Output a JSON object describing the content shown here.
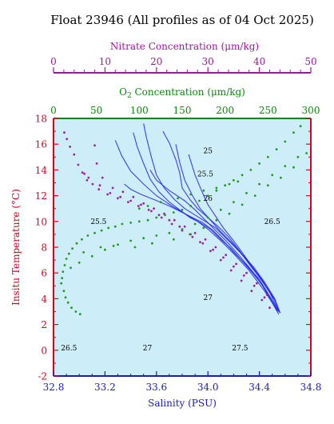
{
  "title": "Float 23946  (All profiles as of 04 Oct 2025)",
  "colors": {
    "temperature_axis": "#e0001b",
    "salinity_axis": "#1a1ad0",
    "oxygen_axis": "#0a8a0a",
    "nitrate_axis": "#9a1a9a",
    "plot_background": "#cdeef9",
    "density_contour": "#5a6fd6",
    "profile_line": "#2222ee",
    "oxygen_points": "#1f9a1f",
    "nitrate_points": "#a0209e"
  },
  "chart_data": {
    "type": "scatter",
    "title": "Float 23946  (All profiles as of 04 Oct 2025)",
    "axes": {
      "x_bottom": {
        "label": "Salinity (PSU)",
        "range": [
          32.8,
          34.8
        ],
        "ticks": [
          "32.8",
          "33.2",
          "33.6",
          "34.0",
          "34.4",
          "34.8"
        ]
      },
      "y_left": {
        "label": "Insitu Temperature (°C)",
        "range": [
          -2,
          18
        ],
        "ticks": [
          "-2",
          "0",
          "2",
          "4",
          "6",
          "8",
          "10",
          "12",
          "14",
          "16",
          "18"
        ]
      },
      "x_top_oxygen": {
        "label_parts": [
          "O",
          "2",
          " Concentration (μm/kg)"
        ],
        "range": [
          0,
          300
        ],
        "ticks": [
          "0",
          "50",
          "100",
          "150",
          "200",
          "250",
          "300"
        ]
      },
      "x_top_nitrate": {
        "label": "Nitrate Concentration (μm/kg)",
        "range": [
          0,
          50
        ],
        "ticks": [
          "0",
          "10",
          "20",
          "30",
          "40",
          "50"
        ]
      }
    },
    "density_contours": [
      {
        "label": "25",
        "sigma": 25.0,
        "label_at": [
          34.0,
          15.3
        ]
      },
      {
        "label": "25.5",
        "sigma": 25.5,
        "label_at": [
          33.98,
          13.5
        ]
      },
      {
        "label": "26",
        "sigma": 26.0,
        "label_at": [
          34.0,
          11.6
        ]
      },
      {
        "label": "26.5",
        "sigma": 26.5,
        "label_at": [
          34.5,
          9.8
        ]
      },
      {
        "label": "27",
        "sigma": 27.0,
        "label_at": [
          34.0,
          3.9
        ]
      },
      {
        "label": "27.5",
        "sigma": 27.5,
        "label_at": [
          34.25,
          0.0
        ]
      }
    ],
    "extra_contour_labels": [
      {
        "label": "25.5",
        "at": [
          33.15,
          9.8
        ]
      },
      {
        "label": "26.5",
        "at": [
          32.92,
          0.0
        ]
      },
      {
        "label": "27",
        "at": [
          33.53,
          0.0
        ]
      }
    ],
    "ts_profiles": [
      {
        "salinity": [
          33.42,
          33.45,
          33.5,
          33.55,
          33.62,
          33.7,
          33.78,
          33.86,
          33.94,
          34.02,
          34.1,
          34.18,
          34.26,
          34.34,
          34.42,
          34.5,
          34.55
        ],
        "temperature": [
          16.9,
          15.8,
          14.5,
          13.3,
          12.3,
          11.5,
          10.9,
          10.3,
          9.9,
          9.4,
          8.6,
          7.9,
          7.0,
          6.1,
          5.1,
          3.7,
          2.8
        ]
      },
      {
        "salinity": [
          33.5,
          33.52,
          33.56,
          33.6,
          33.66,
          33.74,
          33.82,
          33.9,
          33.98,
          34.06,
          34.12,
          34.2,
          34.28,
          34.36,
          34.44,
          34.52,
          34.56
        ],
        "temperature": [
          17.6,
          16.6,
          15.0,
          13.6,
          12.6,
          11.7,
          11.0,
          10.5,
          10.0,
          9.5,
          8.9,
          8.1,
          7.3,
          6.4,
          5.3,
          4.0,
          2.9
        ]
      },
      {
        "salinity": [
          33.28,
          33.33,
          33.4,
          33.5,
          33.6,
          33.72,
          33.84,
          33.96,
          34.04,
          34.12,
          34.2,
          34.3,
          34.4,
          34.48,
          34.55
        ],
        "temperature": [
          16.3,
          15.1,
          13.9,
          12.9,
          12.0,
          11.2,
          10.5,
          9.9,
          9.3,
          8.5,
          7.6,
          6.6,
          5.5,
          4.2,
          3.0
        ]
      },
      {
        "salinity": [
          33.65,
          33.7,
          33.75,
          33.78,
          33.8,
          33.86,
          33.92,
          34.0,
          34.08,
          34.16,
          34.24,
          34.32,
          34.42,
          34.52,
          34.56
        ],
        "temperature": [
          17.0,
          16.1,
          14.8,
          13.8,
          12.6,
          11.7,
          11.0,
          10.3,
          9.6,
          8.8,
          7.8,
          6.7,
          5.4,
          3.9,
          2.9
        ]
      },
      {
        "salinity": [
          33.55,
          33.6,
          33.7,
          33.82,
          33.9,
          33.96,
          34.04,
          34.14,
          34.24,
          34.34,
          34.44,
          34.54
        ],
        "temperature": [
          14.0,
          13.2,
          12.4,
          11.6,
          10.9,
          10.3,
          9.5,
          8.5,
          7.4,
          6.2,
          4.8,
          3.0
        ]
      },
      {
        "salinity": [
          33.35,
          33.4,
          33.48,
          33.58,
          33.7,
          33.82,
          33.92,
          34.0,
          34.1,
          34.2,
          34.32,
          34.44,
          34.54
        ],
        "temperature": [
          12.9,
          12.5,
          12.1,
          11.7,
          11.2,
          10.6,
          10.0,
          9.4,
          8.5,
          7.5,
          6.2,
          4.6,
          3.1
        ]
      },
      {
        "salinity": [
          33.75,
          33.78,
          33.82,
          33.88,
          33.94,
          34.02,
          34.1,
          34.2,
          34.3,
          34.42,
          34.52,
          34.56
        ],
        "temperature": [
          16.0,
          14.6,
          13.2,
          12.0,
          11.0,
          10.1,
          9.2,
          8.2,
          7.0,
          5.5,
          3.9,
          2.9
        ]
      },
      {
        "salinity": [
          33.85,
          33.9,
          33.95,
          34.0,
          34.06,
          34.12,
          34.2,
          34.28,
          34.38,
          34.48,
          34.55
        ],
        "temperature": [
          15.2,
          13.6,
          12.4,
          11.3,
          10.4,
          9.5,
          8.5,
          7.4,
          6.0,
          4.5,
          3.0
        ]
      }
    ],
    "oxygen_points": [
      [
        9,
        5.2
      ],
      [
        10,
        5.6
      ],
      [
        11,
        6.1
      ],
      [
        13,
        6.6
      ],
      [
        15,
        7.1
      ],
      [
        18,
        7.5
      ],
      [
        22,
        7.9
      ],
      [
        27,
        8.3
      ],
      [
        33,
        8.6
      ],
      [
        40,
        8.9
      ],
      [
        48,
        9.1
      ],
      [
        56,
        9.3
      ],
      [
        64,
        9.5
      ],
      [
        72,
        9.6
      ],
      [
        80,
        9.8
      ],
      [
        90,
        9.9
      ],
      [
        100,
        10.0
      ],
      [
        110,
        10.1
      ],
      [
        120,
        10.3
      ],
      [
        130,
        10.5
      ],
      [
        140,
        10.7
      ],
      [
        150,
        10.9
      ],
      [
        160,
        11.2
      ],
      [
        170,
        11.6
      ],
      [
        180,
        12.0
      ],
      [
        190,
        12.4
      ],
      [
        200,
        12.8
      ],
      [
        210,
        13.2
      ],
      [
        220,
        13.6
      ],
      [
        230,
        14.0
      ],
      [
        240,
        14.5
      ],
      [
        250,
        15.0
      ],
      [
        260,
        15.6
      ],
      [
        270,
        16.2
      ],
      [
        280,
        16.9
      ],
      [
        288,
        17.4
      ],
      [
        12,
        4.6
      ],
      [
        14,
        4.1
      ],
      [
        17,
        3.7
      ],
      [
        21,
        3.3
      ],
      [
        26,
        3.0
      ],
      [
        31,
        2.8
      ],
      [
        20,
        6.4
      ],
      [
        30,
        6.8
      ],
      [
        45,
        7.3
      ],
      [
        60,
        7.8
      ],
      [
        75,
        8.2
      ],
      [
        90,
        8.5
      ],
      [
        105,
        8.7
      ],
      [
        120,
        8.9
      ],
      [
        135,
        9.1
      ],
      [
        150,
        9.4
      ],
      [
        165,
        9.8
      ],
      [
        180,
        10.3
      ],
      [
        195,
        10.9
      ],
      [
        210,
        11.5
      ],
      [
        225,
        12.2
      ],
      [
        240,
        12.9
      ],
      [
        255,
        13.6
      ],
      [
        270,
        14.3
      ],
      [
        285,
        15.0
      ],
      [
        35,
        7.6
      ],
      [
        55,
        8.0
      ],
      [
        70,
        8.1
      ],
      [
        95,
        8.0
      ],
      [
        115,
        8.3
      ],
      [
        140,
        8.6
      ],
      [
        160,
        9.0
      ],
      [
        175,
        9.5
      ],
      [
        190,
        10.1
      ],
      [
        205,
        10.6
      ],
      [
        220,
        11.3
      ],
      [
        235,
        12.0
      ],
      [
        250,
        12.8
      ],
      [
        265,
        13.4
      ],
      [
        280,
        14.2
      ],
      [
        295,
        15.3
      ],
      [
        100,
        11.0
      ],
      [
        110,
        11.2
      ],
      [
        125,
        11.5
      ],
      [
        145,
        11.8
      ],
      [
        160,
        12.1
      ],
      [
        175,
        12.4
      ],
      [
        190,
        12.6
      ],
      [
        205,
        12.9
      ],
      [
        215,
        13.1
      ]
    ],
    "nitrate_points": [
      [
        2.1,
        16.9
      ],
      [
        2.6,
        16.4
      ],
      [
        3.2,
        15.8
      ],
      [
        4.0,
        15.2
      ],
      [
        4.8,
        14.4
      ],
      [
        5.6,
        13.8
      ],
      [
        6.5,
        13.2
      ],
      [
        7.6,
        12.9
      ],
      [
        8.8,
        12.5
      ],
      [
        10.5,
        12.1
      ],
      [
        12.5,
        11.8
      ],
      [
        14.5,
        11.5
      ],
      [
        16.5,
        11.2
      ],
      [
        18.5,
        10.9
      ],
      [
        20.5,
        10.5
      ],
      [
        22.5,
        10.1
      ],
      [
        24.5,
        9.6
      ],
      [
        26.5,
        9.0
      ],
      [
        28.5,
        8.4
      ],
      [
        30.5,
        7.7
      ],
      [
        32.5,
        7.0
      ],
      [
        34.5,
        6.2
      ],
      [
        36.5,
        5.4
      ],
      [
        38.5,
        4.6
      ],
      [
        40.5,
        3.9
      ],
      [
        42.0,
        3.3
      ],
      [
        8.0,
        15.9
      ],
      [
        8.4,
        14.5
      ],
      [
        9.5,
        13.4
      ],
      [
        11.5,
        12.6
      ],
      [
        13.5,
        12.3
      ],
      [
        15.5,
        11.9
      ],
      [
        17.5,
        11.4
      ],
      [
        19.5,
        11.0
      ],
      [
        21.5,
        10.6
      ],
      [
        23.5,
        10.1
      ],
      [
        25.5,
        9.6
      ],
      [
        27.5,
        9.1
      ],
      [
        29.5,
        8.6
      ],
      [
        31.5,
        8.0
      ],
      [
        33.5,
        7.4
      ],
      [
        35.5,
        6.7
      ],
      [
        37.5,
        6.0
      ],
      [
        39.5,
        5.2
      ],
      [
        41.5,
        4.3
      ],
      [
        6.0,
        13.7
      ],
      [
        6.8,
        13.4
      ],
      [
        9.0,
        12.8
      ],
      [
        11.0,
        12.2
      ],
      [
        13.0,
        11.9
      ],
      [
        15.0,
        11.6
      ],
      [
        17.0,
        11.3
      ],
      [
        19.0,
        10.8
      ],
      [
        21.0,
        10.3
      ],
      [
        23.0,
        9.8
      ],
      [
        25.0,
        9.3
      ],
      [
        27.0,
        8.8
      ],
      [
        29.0,
        8.3
      ],
      [
        31.0,
        7.8
      ],
      [
        33.0,
        7.2
      ],
      [
        35.0,
        6.5
      ],
      [
        37.0,
        5.8
      ],
      [
        39.0,
        5.0
      ],
      [
        41.0,
        4.1
      ]
    ]
  }
}
